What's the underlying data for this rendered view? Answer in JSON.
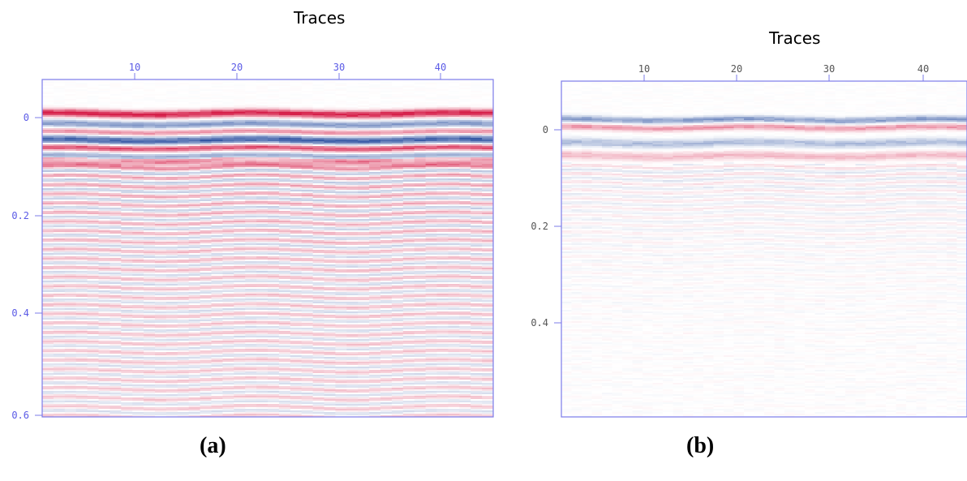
{
  "colors": {
    "axis": "#7b7bea",
    "tick_label_a": "#5a5ae6",
    "tick_label_b": "#555555",
    "positive": "#d6204a",
    "negative": "#2a4fa0",
    "background": "#ffffff"
  },
  "chart_data": [
    {
      "type": "heatmap",
      "panel_label": "(a)",
      "xlabel": "Traces",
      "x_ticks": [
        10,
        20,
        30,
        40
      ],
      "xlim": [
        0,
        45
      ],
      "y_ticks": [
        0,
        0.2,
        0.4,
        0.6
      ],
      "y_tick_labels": [
        "0",
        "0.2",
        "0.4",
        "0.6"
      ],
      "ylim": [
        -0.04,
        0.6
      ],
      "grid": false,
      "events": [
        {
          "t": 0.025,
          "amp": 1.0,
          "width": 0.007
        },
        {
          "t": 0.045,
          "amp": -0.55,
          "width": 0.007
        },
        {
          "t": 0.06,
          "amp": 0.5,
          "width": 0.006
        },
        {
          "t": 0.075,
          "amp": -0.85,
          "width": 0.008
        },
        {
          "t": 0.09,
          "amp": 0.8,
          "width": 0.006
        },
        {
          "t": 0.105,
          "amp": -0.45,
          "width": 0.006
        },
        {
          "t": 0.118,
          "amp": 0.7,
          "width": 0.006
        }
      ],
      "coda": {
        "amp": 0.38,
        "period": 0.0175,
        "decay": 0.15,
        "floor": 0.55,
        "bias": 0.18
      },
      "noise": 0.28
    },
    {
      "type": "heatmap",
      "panel_label": "(b)",
      "xlabel": "Traces",
      "x_ticks": [
        10,
        20,
        30,
        40
      ],
      "xlim": [
        0,
        45
      ],
      "y_ticks": [
        0,
        0.2,
        0.4
      ],
      "y_tick_labels": [
        "0",
        "0.2",
        "0.4"
      ],
      "ylim": [
        -0.05,
        0.6
      ],
      "grid": false,
      "events": [
        {
          "t": 0.025,
          "amp": -0.55,
          "width": 0.006
        },
        {
          "t": 0.04,
          "amp": 0.45,
          "width": 0.006
        },
        {
          "t": 0.07,
          "amp": -0.35,
          "width": 0.008
        },
        {
          "t": 0.095,
          "amp": 0.3,
          "width": 0.008
        }
      ],
      "coda": {
        "amp": 0.16,
        "period": 0.016,
        "decay": 0.13,
        "floor": 0.12,
        "bias": 0.0
      },
      "noise": 0.45
    }
  ]
}
